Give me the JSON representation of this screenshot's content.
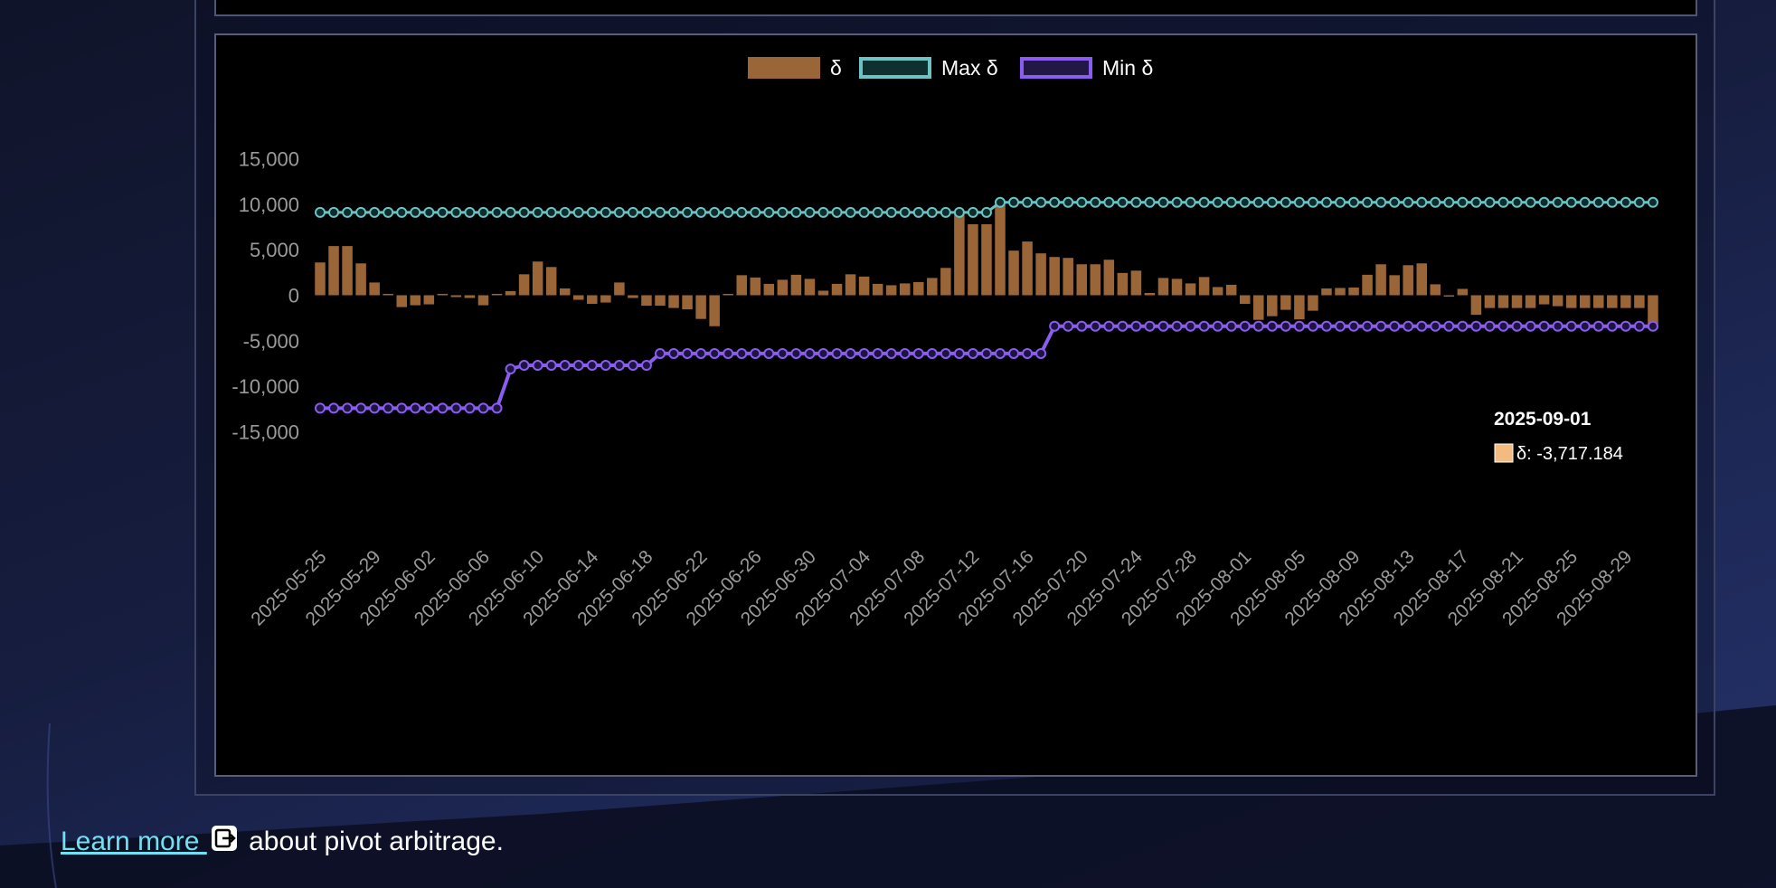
{
  "chart_data": {
    "type": "bar",
    "legend": [
      {
        "label": "δ",
        "color": "#9a6638"
      },
      {
        "label": "Max δ",
        "color": "#6cc3c3"
      },
      {
        "label": "Min δ",
        "color": "#8a5cf0"
      }
    ],
    "legend_position": "top-center",
    "ylim": [
      -15000,
      15000
    ],
    "y_ticks": [
      "15,000",
      "10,000",
      "5,000",
      "0",
      "-5,000",
      "-10,000",
      "-15,000"
    ],
    "y_tick_values": [
      15000,
      10000,
      5000,
      0,
      -5000,
      -10000,
      -15000
    ],
    "start_date": "2025-05-25",
    "x_tick_labels": [
      "2025-05-25",
      "2025-05-29",
      "2025-06-02",
      "2025-06-06",
      "2025-06-10",
      "2025-06-14",
      "2025-06-18",
      "2025-06-22",
      "2025-06-26",
      "2025-06-30",
      "2025-07-04",
      "2025-07-08",
      "2025-07-12",
      "2025-07-16",
      "2025-07-20",
      "2025-07-24",
      "2025-07-28",
      "2025-08-01",
      "2025-08-05",
      "2025-08-09",
      "2025-08-13",
      "2025-08-17",
      "2025-08-21",
      "2025-08-25",
      "2025-08-29"
    ],
    "series": [
      {
        "name": "δ",
        "type": "bar",
        "values": [
          3600,
          5400,
          5400,
          3500,
          1400,
          150,
          -1300,
          -1100,
          -1000,
          150,
          -200,
          -300,
          -1100,
          150,
          450,
          2300,
          3700,
          3100,
          750,
          -500,
          -950,
          -800,
          1400,
          -300,
          -1150,
          -1150,
          -1400,
          -1550,
          -2600,
          -3400,
          150,
          2200,
          1950,
          1250,
          1700,
          2250,
          1800,
          500,
          1250,
          2300,
          2050,
          1250,
          1100,
          1300,
          1450,
          1900,
          3000,
          9200,
          7800,
          7800,
          10200,
          4900,
          5900,
          4600,
          4200,
          4100,
          3400,
          3400,
          3900,
          2450,
          2700,
          250,
          1900,
          1800,
          1300,
          2000,
          900,
          1150,
          -950,
          -2700,
          -2300,
          -1600,
          -2650,
          -1700,
          750,
          800,
          850,
          2250,
          3400,
          2200,
          3300,
          3500,
          1200,
          -150,
          700,
          -2150,
          -1400,
          -1400,
          -1400,
          -1400,
          -1000,
          -1200,
          -1400,
          -1400,
          -1400,
          -1400,
          -1400,
          -1400,
          -3700
        ]
      },
      {
        "name": "Max δ",
        "type": "line",
        "segments": [
          [
            0,
            49,
            9100
          ],
          [
            50,
            98,
            10200
          ]
        ]
      },
      {
        "name": "Min δ",
        "type": "line",
        "segments": [
          [
            0,
            13,
            -12400
          ],
          [
            14,
            14,
            -8100
          ],
          [
            15,
            24,
            -7700
          ],
          [
            25,
            53,
            -6400
          ],
          [
            54,
            98,
            -3400
          ]
        ]
      }
    ],
    "tooltip": {
      "title": "2025-09-01",
      "text": "δ: -3,717.184",
      "swatch_color": "#f4bb80"
    }
  },
  "footer": {
    "link_text": "Learn more ",
    "link_icon": "external-link-icon",
    "rest_text": " about pivot arbitrage."
  }
}
